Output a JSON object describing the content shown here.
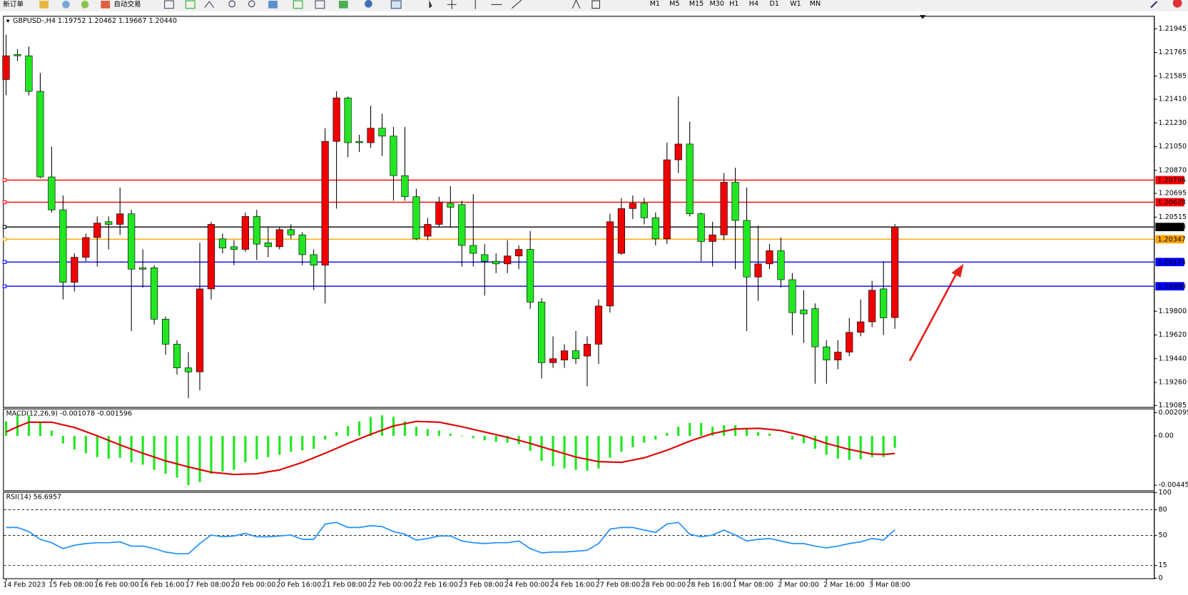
{
  "toolbar": {
    "items": [
      "新订单",
      "自动交易",
      "M1",
      "M5",
      "M15",
      "M30",
      "H1",
      "H4",
      "D1",
      "W1",
      "MN"
    ]
  },
  "chart_data": [
    {
      "type": "candlestick",
      "title": "GBPUSD-,H4  1.19752 1.20462 1.19667 1.20440",
      "categories": [
        "14 Feb 2023",
        null,
        null,
        null,
        "15 Feb 08:00",
        null,
        null,
        null,
        "16 Feb 00:00",
        null,
        null,
        null,
        "16 Feb 16:00",
        null,
        null,
        null,
        "17 Feb 08:00",
        null,
        null,
        null,
        "20 Feb 00:00",
        null,
        null,
        null,
        "20 Feb 16:00",
        null,
        null,
        null,
        "21 Feb 08:00",
        null,
        null,
        null,
        "22 Feb 00:00",
        null,
        null,
        null,
        "22 Feb 16:00",
        null,
        null,
        null,
        "23 Feb 08:00",
        null,
        null,
        null,
        "24 Feb 00:00",
        null,
        null,
        null,
        "24 Feb 16:00",
        null,
        null,
        null,
        "27 Feb 08:00",
        null,
        null,
        null,
        "28 Feb 00:00",
        null,
        null,
        null,
        "28 Feb 16:00",
        null,
        null,
        null,
        "1 Mar 08:00",
        null,
        null,
        null,
        "2 Mar 00:00",
        null,
        null,
        null,
        "2 Mar 16:00",
        null,
        null,
        null,
        "3 Mar 08:00",
        null,
        null
      ],
      "open": [
        1.2156,
        1.2175,
        1.2174,
        1.2147,
        1.2082,
        1.2057,
        1.2002,
        1.2021,
        1.2036,
        1.2048,
        1.2046,
        1.2054,
        1.2013,
        1.2013,
        1.1974,
        1.1955,
        1.1937,
        1.1934,
        1.1997,
        1.2035,
        1.2029,
        1.2027,
        1.2052,
        1.2032,
        1.2029,
        1.2042,
        1.2038,
        1.2023,
        1.2015,
        1.2109,
        1.2142,
        1.2109,
        1.2108,
        1.2119,
        1.2113,
        1.2083,
        1.2067,
        1.2037,
        1.2046,
        1.2062,
        1.2061,
        1.203,
        1.2023,
        1.2018,
        1.2016,
        1.2022,
        1.2027,
        1.1987,
        1.1941,
        1.1943,
        1.195,
        1.1946,
        1.1955,
        1.1984,
        1.2024,
        1.2058,
        1.2062,
        1.2051,
        1.2035,
        1.2095,
        1.2107,
        1.2054,
        1.2033,
        1.2038,
        1.2078,
        1.2049,
        1.2006,
        1.2016,
        1.2026,
        1.2004,
        1.1981,
        1.1982,
        1.1953,
        1.1943,
        1.1949,
        1.1964,
        1.1972,
        1.1997,
        1.19752
      ],
      "high": [
        1.219,
        1.2179,
        1.2181,
        1.2161,
        1.2105,
        1.2068,
        1.2024,
        1.2039,
        1.2052,
        1.2052,
        1.2074,
        1.2057,
        1.2027,
        1.2015,
        1.1976,
        1.1958,
        1.1949,
        1.2032,
        1.2048,
        1.2039,
        1.2034,
        1.2055,
        1.2057,
        1.2044,
        1.2044,
        1.2046,
        1.204,
        1.2027,
        1.2119,
        1.2147,
        1.2143,
        1.2114,
        1.2136,
        1.213,
        1.212,
        1.212,
        1.2073,
        1.2051,
        1.2067,
        1.2075,
        1.2064,
        1.2069,
        1.2031,
        1.2024,
        1.2034,
        1.203,
        1.2041,
        1.199,
        1.1961,
        1.1955,
        1.1965,
        1.1961,
        1.1989,
        1.2054,
        1.2066,
        1.2068,
        1.2066,
        1.2055,
        1.2108,
        1.2143,
        1.2124,
        1.2055,
        1.2048,
        1.2085,
        1.2089,
        1.2074,
        1.2045,
        1.2031,
        1.2036,
        1.2009,
        1.1996,
        1.1986,
        1.1958,
        1.1958,
        1.1975,
        1.1989,
        1.2003,
        1.2018,
        1.20462
      ],
      "low": [
        1.2144,
        1.217,
        1.2144,
        1.2081,
        1.2055,
        1.1989,
        1.1995,
        1.2018,
        1.2014,
        1.2027,
        1.2038,
        1.1965,
        1.1998,
        1.197,
        1.1947,
        1.1932,
        1.1914,
        1.192,
        1.1989,
        1.2024,
        1.2015,
        1.2025,
        1.2019,
        1.2021,
        1.2027,
        1.2035,
        1.2015,
        1.1996,
        1.1986,
        1.2058,
        1.2097,
        1.2101,
        1.2104,
        1.2098,
        1.2064,
        1.2064,
        1.2034,
        1.2034,
        1.2044,
        1.2044,
        1.2014,
        1.2014,
        1.1992,
        1.2009,
        1.2009,
        1.2012,
        1.1982,
        1.1929,
        1.1937,
        1.1937,
        1.194,
        1.1923,
        1.194,
        1.1979,
        1.2023,
        1.205,
        1.2046,
        1.203,
        1.2031,
        1.2085,
        1.2052,
        1.2018,
        1.2014,
        1.2034,
        1.2012,
        1.1965,
        1.1988,
        1.2012,
        1.1998,
        1.1962,
        1.1956,
        1.1925,
        1.1925,
        1.1936,
        1.1946,
        1.1961,
        1.1968,
        1.1962,
        1.19667
      ],
      "close": [
        1.2174,
        1.2174,
        1.2147,
        1.2082,
        1.2057,
        1.2002,
        1.2021,
        1.2036,
        1.2047,
        1.2046,
        1.2054,
        1.2012,
        1.2012,
        1.1974,
        1.1955,
        1.1937,
        1.1934,
        1.1997,
        1.2046,
        1.2028,
        1.2027,
        1.2052,
        1.2031,
        1.2029,
        1.2042,
        1.2038,
        1.2023,
        1.2015,
        1.2109,
        1.2142,
        1.2108,
        1.2108,
        1.2119,
        1.2113,
        1.2083,
        1.2067,
        1.2035,
        1.2046,
        1.2063,
        1.2059,
        1.203,
        1.2024,
        1.2018,
        1.2016,
        1.2022,
        1.2027,
        1.1987,
        1.1941,
        1.1944,
        1.195,
        1.1944,
        1.1955,
        1.1984,
        1.2048,
        1.2058,
        1.2062,
        1.2051,
        1.2035,
        1.2095,
        1.2107,
        1.2054,
        1.2033,
        1.2038,
        1.2078,
        1.2049,
        1.2006,
        1.2016,
        1.2026,
        1.2004,
        1.1979,
        1.1978,
        1.1953,
        1.1943,
        1.1949,
        1.1964,
        1.1972,
        1.1996,
        1.1975,
        1.2044
      ],
      "up_color": "#f00000",
      "down_color": "#22e622",
      "ylim": [
        1.19073,
        1.22037
      ],
      "yticks": [
        1.21945,
        1.21765,
        1.21585,
        {
          "value": 1.2141,
          "label": "1.21410"
        },
        {
          "value": 1.2123,
          "label": "1.21230"
        },
        {
          "value": 1.2105,
          "label": "1.21050"
        },
        {
          "value": 1.2087,
          "label": "1.20870"
        },
        1.20695,
        1.20515,
        {
          "value": 1.198,
          "label": "1.19800"
        },
        {
          "value": 1.1962,
          "label": "1.19620"
        },
        {
          "value": 1.1944,
          "label": "1.19440"
        },
        {
          "value": 1.1926,
          "label": "1.19260"
        },
        1.19085
      ],
      "levels": [
        {
          "value": 1.20796,
          "color": "#ff0000"
        },
        {
          "value": 1.20628,
          "color": "#ff0000"
        },
        {
          "value": 1.2044,
          "label": "1.20440",
          "color": "#000000"
        },
        {
          "value": 1.20347,
          "color": "#ffa500"
        },
        {
          "value": 1.20174,
          "color": "#0000ff"
        },
        {
          "value": 1.1999,
          "label": "1.19990",
          "color": "#0000ff"
        }
      ]
    },
    {
      "type": "macd",
      "title": "MACD(12,26,9) -0.001078 -0.001596",
      "histogram": [
        0.001302,
        0.00185,
        0.00185,
        0.001165,
        0.00048,
        -0.000685,
        -0.001233,
        -0.001576,
        -0.001918,
        -0.002055,
        -0.001987,
        -0.002398,
        -0.002603,
        -0.003083,
        -0.003425,
        -0.003768,
        -0.004453,
        -0.004179,
        -0.003425,
        -0.00322,
        -0.003083,
        -0.002398,
        -0.002124,
        -0.001918,
        -0.001713,
        -0.001439,
        -0.001302,
        -0.001165,
        -0.000343,
        0.000343,
        0.000891,
        0.001302,
        0.001713,
        0.00185,
        0.001713,
        0.001302,
        0.000822,
        0.000617,
        0.00048,
        0.000206,
        -5e-05,
        -0.000206,
        -0.000411,
        -0.000548,
        -0.000617,
        -0.000754,
        -0.00137,
        -0.002261,
        -0.00274,
        -0.002946,
        -0.003083,
        -0.003151,
        -0.002946,
        -0.001987,
        -0.001439,
        -0.001028,
        -0.000617,
        -0.000343,
        0.000274,
        0.000822,
        0.001165,
        0.001165,
        0.000822,
        0.000959,
        0.000959,
        0.000617,
        0.000343,
        0.000206,
        -3e-05,
        -0.000343,
        -0.000685,
        -0.001165,
        -0.001713,
        -0.002055,
        -0.002192,
        -0.002124,
        -0.001918,
        -0.001918,
        -0.001078
      ],
      "signal": [
        0.000343,
        0.000822,
        0.001233,
        0.001233,
        0.001233,
        0.000993,
        0.000754,
        0.000377,
        0.0,
        -0.000411,
        -0.000822,
        -0.001199,
        -0.001576,
        -0.001918,
        -0.002261,
        -0.002535,
        -0.002809,
        -0.003048,
        -0.003288,
        -0.003391,
        -0.003494,
        -0.003459,
        -0.003425,
        -0.003254,
        -0.003083,
        -0.00274,
        -0.002398,
        -0.001987,
        -0.001576,
        -0.00113,
        -0.000685,
        -0.000274,
        0.000137,
        0.000514,
        0.000891,
        0.001096,
        0.001302,
        0.001267,
        0.001233,
        0.001028,
        0.000822,
        0.000582,
        0.000343,
        0.000103,
        -0.000137,
        -0.000411,
        -0.000685,
        -0.000993,
        -0.001302,
        -0.00161,
        -0.001918,
        -0.002124,
        -0.002329,
        -0.002363,
        -0.002398,
        -0.002192,
        -0.001987,
        -0.001644,
        -0.001302,
        -0.000891,
        -0.00048,
        -0.000137,
        0.000206,
        0.000411,
        0.000617,
        0.000651,
        0.000685,
        0.000582,
        0.00048,
        0.00024,
        0.0,
        -0.000343,
        -0.000685,
        -0.000959,
        -0.001233,
        -0.001439,
        -0.001644,
        -0.001678,
        -0.001596
      ],
      "histogram_color": "#22e622",
      "signal_color": "#e00000",
      "ylim": [
        -0.00493,
        0.0024
      ],
      "yticks": [
        0.002095,
        {
          "value": 0,
          "label": "0.00"
        },
        -0.004455
      ]
    },
    {
      "type": "line",
      "title": "RSI(14) 56.6957",
      "values": [
        59.4,
        59.4,
        54.5,
        45.5,
        41.6,
        34.7,
        38.6,
        40.6,
        41.6,
        41.6,
        42.6,
        37.6,
        37.6,
        34.7,
        30.7,
        28.7,
        28.7,
        40.6,
        50.5,
        48.5,
        49.5,
        52.5,
        48.5,
        48.5,
        49.5,
        50.5,
        45.5,
        45.5,
        63.4,
        65.3,
        59.4,
        59.4,
        61.4,
        60.4,
        54.5,
        51.5,
        44.6,
        46.5,
        49.5,
        49.5,
        43.6,
        41.6,
        40.6,
        41.6,
        41.6,
        43.6,
        34.7,
        29.7,
        30.7,
        30.7,
        31.7,
        32.7,
        40.6,
        57.4,
        59.4,
        59.4,
        56.4,
        53.5,
        63.4,
        65.3,
        51.5,
        48.5,
        50.5,
        56.4,
        50.5,
        43.6,
        45.5,
        46.5,
        43.6,
        40.6,
        40.6,
        37.6,
        35.6,
        37.6,
        40.6,
        42.6,
        46.5,
        44.6,
        56.6957
      ],
      "color": "#1e90ff",
      "ylim": [
        0,
        100
      ],
      "yticks": [
        100,
        80,
        50,
        15,
        0
      ],
      "levels": [
        80,
        50,
        15
      ]
    }
  ]
}
